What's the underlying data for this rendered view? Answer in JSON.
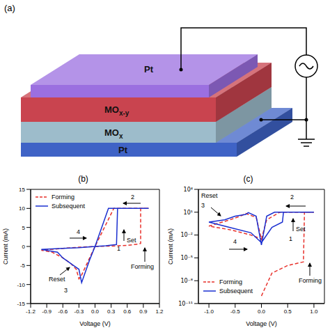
{
  "diagram": {
    "label": "(a)",
    "layers": [
      {
        "label": "Pt",
        "color": "#9b6fe0"
      },
      {
        "label": "MOx-y",
        "color": "#c9444f"
      },
      {
        "label": "MOx",
        "color": "#9dbccb"
      },
      {
        "label": "Pt",
        "color": "#3f63c6"
      }
    ]
  },
  "chart_data": [
    {
      "type": "line",
      "title": "(b)",
      "xlabel": "Voltage (V)",
      "ylabel": "Current (mA)",
      "xlim": [
        -1.2,
        1.2
      ],
      "xticks": [
        -1.2,
        -0.9,
        -0.6,
        -0.3,
        {
          "value": 0,
          "label": "0.0"
        },
        0.3,
        0.6,
        0.9,
        1.2
      ],
      "ylim": [
        -15,
        15
      ],
      "yticks": [
        -15,
        -10,
        -5,
        0,
        5,
        10,
        15
      ],
      "legend": "upper left",
      "series": [
        {
          "name": "Forming",
          "color": "#e8302a",
          "line_style": "dashed",
          "x": [
            0,
            0.3,
            0.6,
            0.8,
            0.85,
            0.85,
            1.0,
            0.35,
            0,
            -0.15,
            -0.25,
            -0.3,
            -0.35,
            -0.45,
            -0.6,
            -0.8,
            -1.0,
            -0.6,
            -0.3,
            0
          ],
          "values": [
            0,
            0.1,
            0.3,
            0.6,
            0.8,
            10,
            10,
            10,
            0,
            -4.5,
            -7.5,
            -8.5,
            -6,
            -4.5,
            -3,
            -1.5,
            -1.0,
            -0.5,
            -0.2,
            0
          ]
        },
        {
          "name": "Subsequent",
          "color": "#1a2fd0",
          "line_style": "solid",
          "x": [
            0,
            0.2,
            0.4,
            0.42,
            1.0,
            0.25,
            0,
            -0.1,
            -0.2,
            -0.25,
            -0.3,
            -0.4,
            -0.5,
            -0.6,
            -0.7,
            -1.0,
            -0.6,
            -0.3,
            0
          ],
          "values": [
            0,
            0.2,
            0.5,
            10,
            10,
            10,
            0,
            -3.5,
            -7.5,
            -9.5,
            -6,
            -5,
            -4,
            -3,
            -1.5,
            -0.8,
            -0.5,
            -0.3,
            0
          ]
        }
      ],
      "annotations": [
        "1",
        "Set",
        "2",
        "Forming",
        "Reset",
        "3",
        "4"
      ]
    },
    {
      "type": "line",
      "title": "(c)",
      "xlabel": "Voltage (V)",
      "ylabel": "Current (mA)",
      "log": "y",
      "xlim": [
        -1.2,
        1.2
      ],
      "xticks": [
        {
          "value": -1,
          "label": "-1.0"
        },
        -0.5,
        {
          "value": 0,
          "label": "0.0"
        },
        0.5,
        {
          "value": 1,
          "label": "1.0"
        }
      ],
      "ylim": [
        1e-11,
        10000
      ],
      "yticks": [
        {
          "value": 1e-11,
          "label": "10⁻¹¹"
        },
        {
          "value": 1e-08,
          "label": "10⁻⁸"
        },
        {
          "value": 1e-05,
          "label": "10⁻⁵"
        },
        {
          "value": 0.01,
          "label": "10⁻²"
        },
        {
          "value": 10,
          "label": "10¹"
        },
        {
          "value": 10000,
          "label": "10⁴"
        }
      ],
      "legend": "lower left",
      "series": [
        {
          "name": "Forming",
          "color": "#e8302a",
          "line_style": "dashed",
          "x": [
            0.0,
            0.2,
            0.5,
            0.8,
            0.82,
            1.0,
            0.35,
            0.1,
            0.0,
            -0.1,
            -0.3,
            -0.4,
            -0.6,
            -1.0,
            -0.6,
            -0.2,
            0.0
          ],
          "values": [
            1e-10,
            1e-07,
            1e-06,
            3e-06,
            10,
            10,
            10,
            1,
            0.003,
            2,
            7,
            3,
            1,
            0.15,
            0.05,
            0.01,
            0.003
          ]
        },
        {
          "name": "Subsequent",
          "color": "#1a2fd0",
          "line_style": "solid",
          "x": [
            0,
            0.2,
            0.4,
            0.42,
            1.0,
            0.25,
            0.1,
            0.0,
            -0.1,
            -0.25,
            -0.3,
            -0.5,
            -0.7,
            -1.0,
            -0.6,
            -0.2,
            0.0
          ],
          "values": [
            0.001,
            0.1,
            0.5,
            10,
            10,
            10,
            3,
            0.0005,
            3,
            9,
            5,
            3,
            1,
            0.5,
            0.1,
            0.02,
            0.001
          ]
        }
      ],
      "annotations": [
        "Reset",
        "3",
        "2",
        "Set",
        "1",
        "4",
        "Forming"
      ]
    }
  ]
}
